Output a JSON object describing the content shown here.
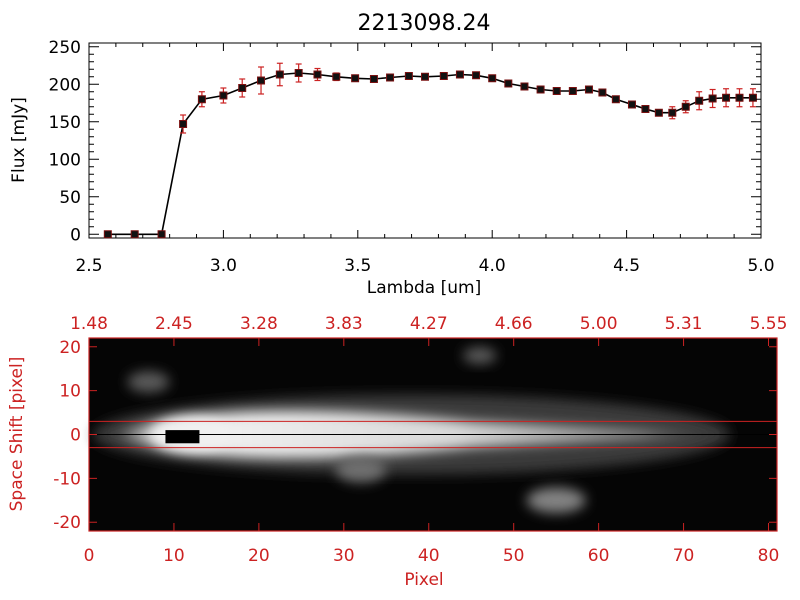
{
  "title": "2213098.24",
  "colors": {
    "axis_top": "#000000",
    "axis_bottom": "#cc2222",
    "errorbar": "#cc2222",
    "marker": "#111111",
    "extraction_lines": "#cc2222"
  },
  "chart_data": [
    {
      "type": "line",
      "title": "2213098.24",
      "xlabel": "Lambda [um]",
      "ylabel": "Flux [mJy]",
      "xlim": [
        2.5,
        5.0
      ],
      "ylim": [
        -5,
        255
      ],
      "xticks": [
        "2.5",
        "3.0",
        "3.5",
        "4.0",
        "4.5",
        "5.0"
      ],
      "yticks": [
        "0",
        "50",
        "100",
        "150",
        "200",
        "250"
      ],
      "xtick_values": [
        2.5,
        3.0,
        3.5,
        4.0,
        4.5,
        5.0
      ],
      "ytick_values": [
        0,
        50,
        100,
        150,
        200,
        250
      ],
      "grid": false,
      "series": [
        {
          "x": [
            2.57,
            2.67,
            2.77,
            2.85,
            2.92,
            3.0,
            3.07,
            3.14,
            3.21,
            3.28,
            3.35,
            3.42,
            3.49,
            3.56,
            3.62,
            3.69,
            3.75,
            3.82,
            3.88,
            3.94,
            4.0,
            4.06,
            4.12,
            4.18,
            4.24,
            4.3,
            4.36,
            4.41,
            4.46,
            4.52,
            4.57,
            4.62,
            4.67,
            4.72,
            4.77,
            4.82,
            4.87,
            4.92,
            4.97
          ],
          "y": [
            0,
            0,
            0,
            147,
            180,
            185,
            195,
            205,
            213,
            215,
            213,
            210,
            208,
            207,
            209,
            211,
            210,
            211,
            213,
            212,
            208,
            201,
            197,
            193,
            191,
            191,
            193,
            189,
            180,
            173,
            167,
            162,
            162,
            170,
            178,
            181,
            182,
            182,
            182
          ],
          "yerr": [
            0,
            0,
            0,
            12,
            10,
            10,
            12,
            18,
            15,
            12,
            8,
            5,
            4,
            4,
            4,
            4,
            4,
            4,
            4,
            4,
            4,
            4,
            4,
            4,
            4,
            4,
            4,
            4,
            4,
            4,
            4,
            4,
            8,
            8,
            12,
            12,
            12,
            12,
            12
          ]
        }
      ]
    },
    {
      "type": "heatmap",
      "xlabel": "Pixel",
      "ylabel": "Space Shift [pixel]",
      "xlim": [
        0,
        81
      ],
      "ylim": [
        -22,
        22
      ],
      "xticks": [
        "0",
        "10",
        "20",
        "30",
        "40",
        "50",
        "60",
        "70",
        "80"
      ],
      "yticks": [
        "-20",
        "-10",
        "0",
        "10",
        "20"
      ],
      "xtick_values": [
        0,
        10,
        20,
        30,
        40,
        50,
        60,
        70,
        80
      ],
      "ytick_values": [
        -20,
        -10,
        0,
        10,
        20
      ],
      "top_axis_ticks": [
        "1.48",
        "2.45",
        "3.28",
        "3.83",
        "4.27",
        "4.66",
        "5.00",
        "5.31",
        "5.55"
      ],
      "extraction_window": [
        -3,
        3
      ],
      "trace_center": 0,
      "colormap": "grayscale",
      "blobs": [
        {
          "x": 12,
          "y": 0,
          "width": 8,
          "height": 6,
          "intensity": 1.0
        },
        {
          "x": 32,
          "y": -8,
          "width": 5,
          "height": 4,
          "intensity": 0.35
        },
        {
          "x": 55,
          "y": -15,
          "width": 6,
          "height": 4,
          "intensity": 0.45
        },
        {
          "x": 46,
          "y": 18,
          "width": 3,
          "height": 2,
          "intensity": 0.25
        },
        {
          "x": 7,
          "y": 12,
          "width": 4,
          "height": 3,
          "intensity": 0.25
        }
      ]
    }
  ]
}
